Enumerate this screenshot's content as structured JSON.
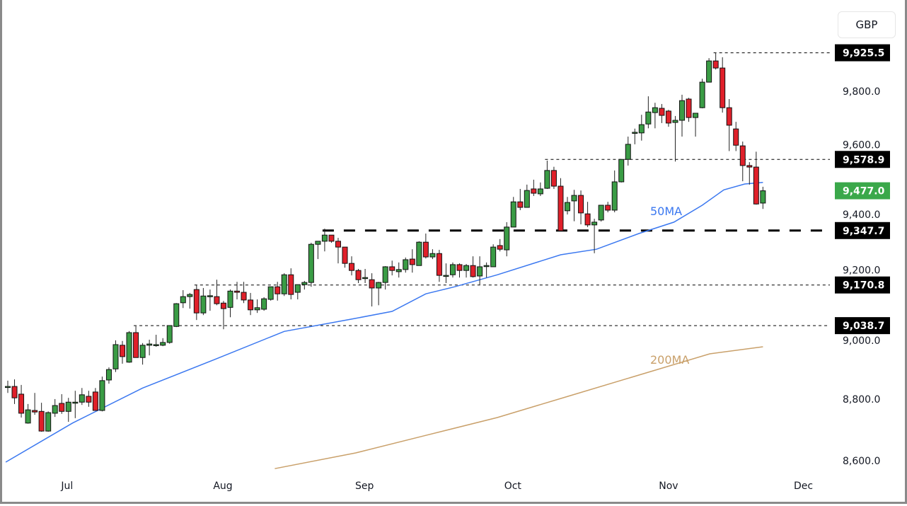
{
  "currency": "GBP",
  "chart_data": {
    "type": "candlestick",
    "title": "",
    "ylim": [
      8556,
      10097
    ],
    "y_ticks": [
      {
        "value": 9800,
        "label": "9,800.0"
      },
      {
        "value": 9600,
        "label": "9,600.0"
      },
      {
        "value": 9400,
        "label": "9,400.0"
      },
      {
        "value": 9200,
        "label": "9,200.0"
      },
      {
        "value": 9000,
        "label": "9,000.0"
      },
      {
        "value": 8800,
        "label": "8,800.0"
      },
      {
        "value": 8600,
        "label": "8,600.0"
      }
    ],
    "x_ticks": [
      {
        "index": 8.8,
        "label": "Jul"
      },
      {
        "index": 31.9,
        "label": "Aug"
      },
      {
        "index": 52.9,
        "label": "Sep"
      },
      {
        "index": 74.9,
        "label": "Oct"
      },
      {
        "index": 98,
        "label": "Nov"
      },
      {
        "index": 118,
        "label": "Dec"
      }
    ],
    "colors": {
      "up": "#3a9c45",
      "down": "#e0202a",
      "ma50": "#3b78f0",
      "ma200": "#c9a06a",
      "last": "#3aa84a",
      "level": "#000000"
    },
    "levels": [
      {
        "value": 9925.5,
        "label": "9,925.5",
        "from_index": 105,
        "style": "thin"
      },
      {
        "value": 9578.9,
        "label": "9,578.9",
        "from_index": 80,
        "style": "thin"
      },
      {
        "value": 9347.7,
        "label": "9,347.7",
        "from_index": 47,
        "style": "thick"
      },
      {
        "value": 9170.8,
        "label": "9,170.8",
        "from_index": 28,
        "style": "thin"
      },
      {
        "value": 9038.7,
        "label": "9,038.7",
        "from_index": 19,
        "style": "thin"
      }
    ],
    "last_price": {
      "value": 9477.0,
      "label": "9,477.0"
    },
    "ma50": {
      "label": "50MA",
      "points": [
        [
          -0.3,
          8595
        ],
        [
          9.6,
          8722
        ],
        [
          20,
          8836
        ],
        [
          30.6,
          8928
        ],
        [
          41,
          9020
        ],
        [
          51,
          9060
        ],
        [
          57,
          9085
        ],
        [
          62,
          9142
        ],
        [
          66.3,
          9165
        ],
        [
          72.6,
          9204
        ],
        [
          82,
          9269
        ],
        [
          87.3,
          9287
        ],
        [
          93.6,
          9338
        ],
        [
          98.8,
          9375
        ],
        [
          103,
          9430
        ],
        [
          106.2,
          9480
        ],
        [
          109.3,
          9499
        ],
        [
          112,
          9504
        ]
      ]
    },
    "ma200": {
      "label": "200MA",
      "points": [
        [
          39.6,
          8574
        ],
        [
          51.6,
          8625
        ],
        [
          62,
          8682
        ],
        [
          72.6,
          8740
        ],
        [
          83.1,
          8809
        ],
        [
          93.6,
          8878
        ],
        [
          104.1,
          8947
        ],
        [
          112,
          8970
        ]
      ]
    },
    "ohlc": [
      [
        8840,
        8860,
        8820,
        8841
      ],
      [
        8841,
        8864,
        8784,
        8804
      ],
      [
        8816,
        8846,
        8740,
        8754
      ],
      [
        8722,
        8784,
        8720,
        8765
      ],
      [
        8763,
        8820,
        8749,
        8758
      ],
      [
        8760,
        8788,
        8694,
        8696
      ],
      [
        8696,
        8760,
        8694,
        8756
      ],
      [
        8754,
        8800,
        8742,
        8779
      ],
      [
        8786,
        8816,
        8752,
        8760
      ],
      [
        8760,
        8804,
        8726,
        8790
      ],
      [
        8790,
        8827,
        8738,
        8790
      ],
      [
        8790,
        8836,
        8781,
        8814
      ],
      [
        8809,
        8827,
        8775,
        8790
      ],
      [
        8823,
        8836,
        8763,
        8763
      ],
      [
        8763,
        8873,
        8760,
        8860
      ],
      [
        8862,
        8903,
        8850,
        8896
      ],
      [
        8898,
        8991,
        8888,
        8977
      ],
      [
        8975,
        8989,
        8915,
        8938
      ],
      [
        8920,
        9021,
        8918,
        9016
      ],
      [
        9016,
        9037,
        8935,
        8935
      ],
      [
        8935,
        8982,
        8912,
        8975
      ],
      [
        8975,
        8993,
        8942,
        8979
      ],
      [
        8977,
        9009,
        8970,
        8977
      ],
      [
        8975,
        8998,
        8972,
        8984
      ],
      [
        8984,
        9039,
        8980,
        9039
      ],
      [
        9036,
        9112,
        9034,
        9110
      ],
      [
        9113,
        9154,
        9096,
        9133
      ],
      [
        9133,
        9145,
        9094,
        9140
      ],
      [
        9156,
        9170,
        9057,
        9080
      ],
      [
        9080,
        9161,
        9073,
        9135
      ],
      [
        9135,
        9156,
        9087,
        9136
      ],
      [
        9133,
        9188,
        9105,
        9110
      ],
      [
        9112,
        9119,
        9027,
        9094
      ],
      [
        9098,
        9156,
        9066,
        9151
      ],
      [
        9151,
        9181,
        9124,
        9147
      ],
      [
        9147,
        9181,
        9112,
        9122
      ],
      [
        9122,
        9145,
        9073,
        9090
      ],
      [
        9090,
        9124,
        9080,
        9097
      ],
      [
        9092,
        9131,
        9087,
        9126
      ],
      [
        9124,
        9165,
        9120,
        9165
      ],
      [
        9165,
        9181,
        9120,
        9142
      ],
      [
        9142,
        9209,
        9135,
        9204
      ],
      [
        9204,
        9225,
        9124,
        9140
      ],
      [
        9147,
        9172,
        9124,
        9172
      ],
      [
        9172,
        9184,
        9156,
        9179
      ],
      [
        9179,
        9308,
        9165,
        9303
      ],
      [
        9303,
        9313,
        9255,
        9313
      ],
      [
        9313,
        9354,
        9280,
        9333
      ],
      [
        9333,
        9333,
        9308,
        9313
      ],
      [
        9313,
        9324,
        9241,
        9294
      ],
      [
        9294,
        9294,
        9227,
        9241
      ],
      [
        9241,
        9264,
        9202,
        9218
      ],
      [
        9218,
        9223,
        9177,
        9188
      ],
      [
        9195,
        9223,
        9177,
        9195
      ],
      [
        9188,
        9209,
        9101,
        9161
      ],
      [
        9161,
        9181,
        9105,
        9179
      ],
      [
        9179,
        9232,
        9156,
        9230
      ],
      [
        9230,
        9250,
        9202,
        9218
      ],
      [
        9214,
        9244,
        9195,
        9221
      ],
      [
        9221,
        9260,
        9211,
        9253
      ],
      [
        9255,
        9287,
        9211,
        9237
      ],
      [
        9234,
        9313,
        9234,
        9310
      ],
      [
        9310,
        9338,
        9257,
        9262
      ],
      [
        9262,
        9287,
        9255,
        9273
      ],
      [
        9273,
        9285,
        9181,
        9202
      ],
      [
        9202,
        9241,
        9177,
        9202
      ],
      [
        9204,
        9244,
        9195,
        9237
      ],
      [
        9237,
        9241,
        9195,
        9218
      ],
      [
        9218,
        9239,
        9195,
        9234
      ],
      [
        9234,
        9264,
        9195,
        9198
      ],
      [
        9200,
        9264,
        9172,
        9230
      ],
      [
        9234,
        9244,
        9195,
        9234
      ],
      [
        9230,
        9303,
        9230,
        9294
      ],
      [
        9299,
        9320,
        9280,
        9287
      ],
      [
        9285,
        9375,
        9264,
        9359
      ],
      [
        9359,
        9457,
        9359,
        9441
      ],
      [
        9441,
        9483,
        9414,
        9423
      ],
      [
        9423,
        9497,
        9423,
        9478
      ],
      [
        9483,
        9513,
        9460,
        9469
      ],
      [
        9467,
        9504,
        9460,
        9483
      ],
      [
        9485,
        9575,
        9483,
        9543
      ],
      [
        9543,
        9555,
        9483,
        9492
      ],
      [
        9492,
        9518,
        9347,
        9347
      ],
      [
        9412,
        9457,
        9400,
        9439
      ],
      [
        9444,
        9480,
        9378,
        9462
      ],
      [
        9462,
        9478,
        9368,
        9405
      ],
      [
        9402,
        9441,
        9359,
        9366
      ],
      [
        9366,
        9386,
        9274,
        9375
      ],
      [
        9382,
        9430,
        9377,
        9430
      ],
      [
        9430,
        9441,
        9407,
        9414
      ],
      [
        9414,
        9543,
        9407,
        9506
      ],
      [
        9506,
        9579,
        9504,
        9579
      ],
      [
        9579,
        9653,
        9559,
        9628
      ],
      [
        9665,
        9679,
        9628,
        9667
      ],
      [
        9665,
        9724,
        9640,
        9692
      ],
      [
        9694,
        9784,
        9680,
        9733
      ],
      [
        9731,
        9763,
        9680,
        9747
      ],
      [
        9745,
        9759,
        9697,
        9722
      ],
      [
        9736,
        9740,
        9685,
        9697
      ],
      [
        9699,
        9720,
        9572,
        9706
      ],
      [
        9706,
        9789,
        9653,
        9770
      ],
      [
        9775,
        9779,
        9701,
        9715
      ],
      [
        9715,
        9729,
        9653,
        9729
      ],
      [
        9747,
        9841,
        9745,
        9830
      ],
      [
        9830,
        9908,
        9830,
        9899
      ],
      [
        9899,
        9925.5,
        9871,
        9876
      ],
      [
        9876,
        9911,
        9731,
        9747
      ],
      [
        9747,
        9775,
        9606,
        9690
      ],
      [
        9678,
        9701,
        9606,
        9625
      ],
      [
        9623,
        9637,
        9508,
        9559
      ],
      [
        9559,
        9570,
        9497,
        9554
      ],
      [
        9554,
        9604,
        9432,
        9434
      ],
      [
        9437,
        9490,
        9418,
        9477
      ]
    ]
  }
}
